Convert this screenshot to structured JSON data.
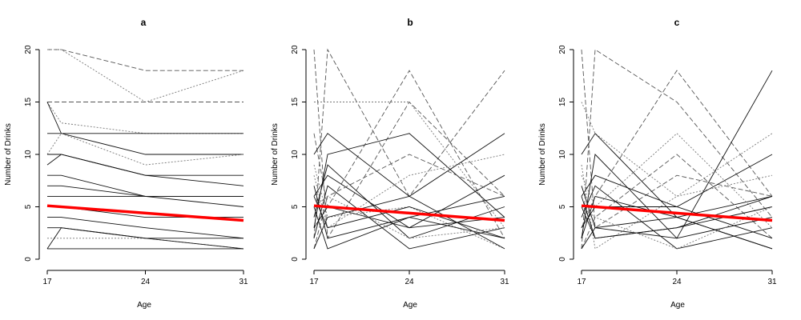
{
  "figure": {
    "background": "#ffffff",
    "trend_color": "#ff0000",
    "line_color": "#000000"
  },
  "chart_data": [
    {
      "type": "line",
      "title": "a",
      "xlabel": "Age",
      "ylabel": "Number of Drinks",
      "xlim": [
        17,
        31
      ],
      "ylim": [
        0,
        20
      ],
      "xticks": [
        17,
        24,
        31
      ],
      "yticks": [
        0,
        5,
        10,
        15,
        20
      ],
      "grid": false,
      "legend": "none",
      "x": [
        17,
        18,
        24,
        31
      ],
      "series": [
        {
          "values": [
            20,
            20,
            18,
            18
          ],
          "style": "dashed"
        },
        {
          "values": [
            20,
            20,
            15,
            18
          ],
          "style": "dotted"
        },
        {
          "values": [
            15,
            15,
            15,
            15
          ],
          "style": "dashed"
        },
        {
          "values": [
            15,
            13,
            12,
            12
          ],
          "style": "dotted"
        },
        {
          "values": [
            15,
            12,
            10,
            10
          ],
          "style": "solid"
        },
        {
          "values": [
            12,
            12,
            12,
            12
          ],
          "style": "solid"
        },
        {
          "values": [
            10,
            12,
            9,
            10
          ],
          "style": "dotted"
        },
        {
          "values": [
            10,
            10,
            8,
            8
          ],
          "style": "solid"
        },
        {
          "values": [
            9,
            10,
            8,
            7
          ],
          "style": "solid"
        },
        {
          "values": [
            8,
            8,
            6,
            6
          ],
          "style": "solid"
        },
        {
          "values": [
            7,
            7,
            6,
            5
          ],
          "style": "solid"
        },
        {
          "values": [
            6,
            6,
            6,
            6
          ],
          "style": "solid"
        },
        {
          "values": [
            5,
            5,
            4,
            4
          ],
          "style": "solid"
        },
        {
          "values": [
            4,
            4,
            3,
            2
          ],
          "style": "solid"
        },
        {
          "values": [
            3,
            3,
            2,
            2
          ],
          "style": "solid"
        },
        {
          "values": [
            2,
            2,
            2,
            1
          ],
          "style": "dotted"
        },
        {
          "values": [
            1,
            3,
            2,
            1
          ],
          "style": "solid"
        },
        {
          "values": [
            1,
            1,
            1,
            1
          ],
          "style": "solid"
        }
      ],
      "trend": {
        "x": [
          17,
          31
        ],
        "y": [
          5.1,
          3.7
        ]
      }
    },
    {
      "type": "line",
      "title": "b",
      "xlabel": "Age",
      "ylabel": "Number of Drinks",
      "xlim": [
        17,
        31
      ],
      "ylim": [
        0,
        20
      ],
      "xticks": [
        17,
        24,
        31
      ],
      "yticks": [
        0,
        5,
        10,
        15,
        20
      ],
      "grid": false,
      "legend": "none",
      "x": [
        17,
        18,
        24,
        31
      ],
      "series": [
        {
          "values": [
            20,
            2,
            15,
            6
          ],
          "style": "dashed"
        },
        {
          "values": [
            2,
            20,
            6,
            18
          ],
          "style": "dashed"
        },
        {
          "values": [
            15,
            15,
            15,
            3
          ],
          "style": "dotted"
        },
        {
          "values": [
            12,
            5,
            18,
            2
          ],
          "style": "dashed"
        },
        {
          "values": [
            10,
            12,
            6,
            12
          ],
          "style": "solid"
        },
        {
          "values": [
            3,
            10,
            12,
            4
          ],
          "style": "solid"
        },
        {
          "values": [
            8,
            3,
            8,
            10
          ],
          "style": "dotted"
        },
        {
          "values": [
            6,
            8,
            3,
            8
          ],
          "style": "solid"
        },
        {
          "values": [
            1,
            6,
            10,
            6
          ],
          "style": "dashed"
        },
        {
          "values": [
            5,
            1,
            4,
            6
          ],
          "style": "solid"
        },
        {
          "values": [
            4,
            9,
            2,
            5
          ],
          "style": "solid"
        },
        {
          "values": [
            9,
            4,
            5,
            1
          ],
          "style": "dotted"
        },
        {
          "values": [
            2,
            7,
            1,
            3
          ],
          "style": "solid"
        },
        {
          "values": [
            7,
            2,
            4,
            2
          ],
          "style": "solid"
        },
        {
          "values": [
            3,
            5,
            3,
            4
          ],
          "style": "solid"
        },
        {
          "values": [
            6,
            3,
            5,
            2
          ],
          "style": "solid"
        },
        {
          "values": [
            1,
            4,
            6,
            1
          ],
          "style": "solid"
        },
        {
          "values": [
            5,
            6,
            2,
            3
          ],
          "style": "dotted"
        }
      ],
      "trend": {
        "x": [
          17,
          31
        ],
        "y": [
          5.1,
          3.7
        ]
      }
    },
    {
      "type": "line",
      "title": "c",
      "xlabel": "Age",
      "ylabel": "Number of Drinks",
      "xlim": [
        17,
        31
      ],
      "ylim": [
        0,
        20
      ],
      "xticks": [
        17,
        24,
        31
      ],
      "yticks": [
        0,
        5,
        10,
        15,
        20
      ],
      "grid": false,
      "legend": "none",
      "x": [
        17,
        18,
        24,
        31
      ],
      "series": [
        {
          "values": [
            20,
            3,
            8,
            6
          ],
          "style": "dashed"
        },
        {
          "values": [
            1,
            20,
            15,
            4
          ],
          "style": "dashed"
        },
        {
          "values": [
            15,
            12,
            6,
            12
          ],
          "style": "dotted"
        },
        {
          "values": [
            3,
            6,
            18,
            6
          ],
          "style": "dashed"
        },
        {
          "values": [
            10,
            12,
            4,
            6
          ],
          "style": "solid"
        },
        {
          "values": [
            2,
            10,
            2,
            18
          ],
          "style": "solid"
        },
        {
          "values": [
            8,
            5,
            12,
            3
          ],
          "style": "dotted"
        },
        {
          "values": [
            6,
            8,
            5,
            10
          ],
          "style": "solid"
        },
        {
          "values": [
            1,
            4,
            10,
            2
          ],
          "style": "dashed"
        },
        {
          "values": [
            5,
            2,
            3,
            5
          ],
          "style": "solid"
        },
        {
          "values": [
            4,
            7,
            1,
            3
          ],
          "style": "solid"
        },
        {
          "values": [
            9,
            1,
            6,
            8
          ],
          "style": "dotted"
        },
        {
          "values": [
            2,
            6,
            4,
            1
          ],
          "style": "solid"
        },
        {
          "values": [
            7,
            3,
            2,
            4
          ],
          "style": "solid"
        },
        {
          "values": [
            3,
            5,
            5,
            2
          ],
          "style": "solid"
        },
        {
          "values": [
            6,
            2,
            3,
            6
          ],
          "style": "solid"
        },
        {
          "values": [
            1,
            3,
            4,
            1
          ],
          "style": "solid"
        },
        {
          "values": [
            5,
            4,
            1,
            5
          ],
          "style": "dotted"
        }
      ],
      "trend": {
        "x": [
          17,
          31
        ],
        "y": [
          5.1,
          3.7
        ]
      }
    }
  ]
}
